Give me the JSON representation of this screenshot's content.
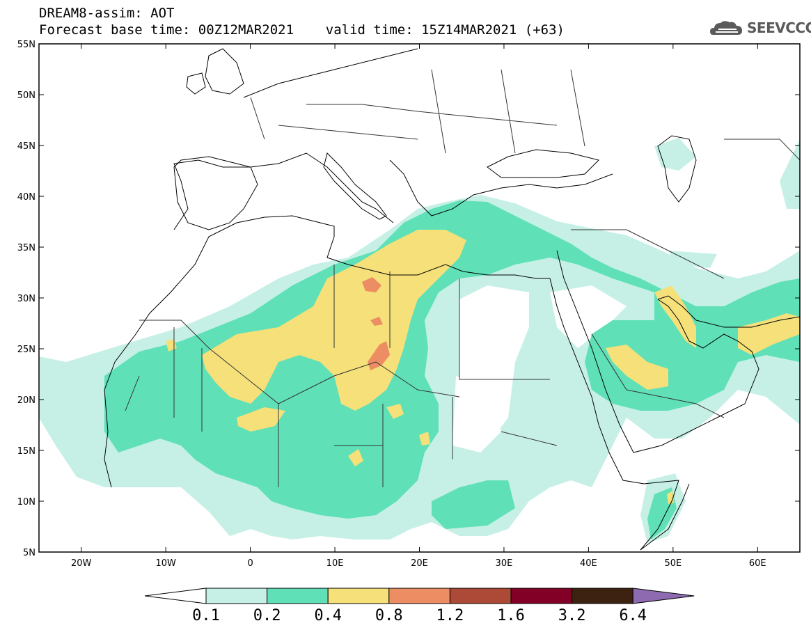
{
  "header": {
    "line1": "DREAM8-assim: AOT",
    "line2": "Forecast base time: 00Z12MAR2021    valid time: 15Z14MAR2021 (+63)"
  },
  "logo": {
    "text": "SEEVCCC",
    "icon": "cloud-icon"
  },
  "map": {
    "variable": "AOT",
    "lon_range": [
      -25,
      65
    ],
    "lat_range": [
      5,
      55
    ],
    "lat_ticks": [
      {
        "value": 55,
        "label": "55N"
      },
      {
        "value": 50,
        "label": "50N"
      },
      {
        "value": 45,
        "label": "45N"
      },
      {
        "value": 40,
        "label": "40N"
      },
      {
        "value": 35,
        "label": "35N"
      },
      {
        "value": 30,
        "label": "30N"
      },
      {
        "value": 25,
        "label": "25N"
      },
      {
        "value": 20,
        "label": "20N"
      },
      {
        "value": 15,
        "label": "15N"
      },
      {
        "value": 10,
        "label": "10N"
      },
      {
        "value": 5,
        "label": "5N"
      }
    ],
    "lon_ticks": [
      {
        "value": -20,
        "label": "20W"
      },
      {
        "value": -10,
        "label": "10W"
      },
      {
        "value": 0,
        "label": "0"
      },
      {
        "value": 10,
        "label": "10E"
      },
      {
        "value": 20,
        "label": "20E"
      },
      {
        "value": 30,
        "label": "30E"
      },
      {
        "value": 40,
        "label": "40E"
      },
      {
        "value": 50,
        "label": "50E"
      },
      {
        "value": 60,
        "label": "60E"
      }
    ]
  },
  "colorbar": {
    "colors": [
      "#ffffff",
      "#c6f0e6",
      "#5fe0b7",
      "#f5e07a",
      "#ec8d64",
      "#ad4a37",
      "#820026",
      "#3d2212",
      "#8e6bb0"
    ],
    "labels": [
      "0.1",
      "0.2",
      "0.4",
      "0.8",
      "1.2",
      "1.6",
      "3.2",
      "6.4"
    ]
  }
}
